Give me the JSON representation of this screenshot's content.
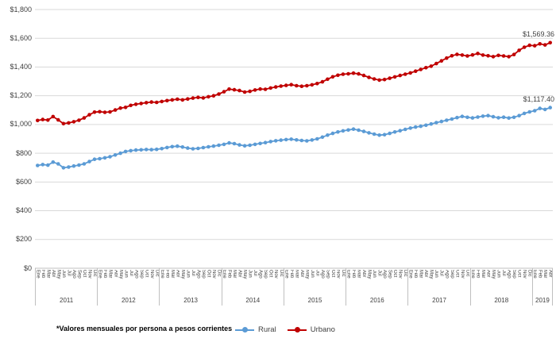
{
  "chart_data": {
    "type": "line",
    "title": "",
    "footnote": "*Valores mensuales por persona a pesos corrientes",
    "grid": true,
    "legend_position": "bottom",
    "y_axis": {
      "min": 0,
      "max": 1800,
      "ticks": [
        {
          "value": 0,
          "label": "$0"
        },
        {
          "value": 200,
          "label": "$200"
        },
        {
          "value": 400,
          "label": "$400"
        },
        {
          "value": 600,
          "label": "$600"
        },
        {
          "value": 800,
          "label": "$800"
        },
        {
          "value": 1000,
          "label": "$1,000"
        },
        {
          "value": 1200,
          "label": "$1,200"
        },
        {
          "value": 1400,
          "label": "$1,400"
        },
        {
          "value": 1600,
          "label": "$1,600"
        },
        {
          "value": 1800,
          "label": "$1,800"
        }
      ]
    },
    "x_axis": {
      "month_names": [
        "Ene",
        "Feb",
        "Mar",
        "Abr",
        "May",
        "Jun",
        "Jul",
        "Ago",
        "Sep",
        "Oct",
        "Nov",
        "Dic"
      ],
      "years": [
        {
          "label": "2011",
          "months": 12
        },
        {
          "label": "2012",
          "months": 12
        },
        {
          "label": "2013",
          "months": 12
        },
        {
          "label": "2014",
          "months": 12
        },
        {
          "label": "2015",
          "months": 12
        },
        {
          "label": "2016",
          "months": 12
        },
        {
          "label": "2017",
          "months": 12
        },
        {
          "label": "2018",
          "months": 12
        },
        {
          "label": "2019",
          "months": 4
        }
      ]
    },
    "series": [
      {
        "name": "Rural",
        "color": "#5B9BD5",
        "end_label": "$1,117.40",
        "values": [
          715,
          721,
          717,
          738,
          726,
          699,
          704,
          711,
          718,
          726,
          742,
          758,
          762,
          768,
          776,
          788,
          800,
          812,
          818,
          822,
          824,
          826,
          825,
          827,
          832,
          840,
          846,
          849,
          843,
          836,
          831,
          834,
          839,
          845,
          850,
          856,
          862,
          872,
          867,
          858,
          852,
          856,
          862,
          868,
          874,
          881,
          887,
          891,
          895,
          898,
          893,
          889,
          886,
          892,
          900,
          912,
          926,
          938,
          948,
          956,
          962,
          968,
          961,
          952,
          942,
          933,
          926,
          929,
          938,
          948,
          957,
          966,
          975,
          982,
          988,
          995,
          1004,
          1013,
          1021,
          1030,
          1038,
          1048,
          1056,
          1050,
          1046,
          1052,
          1058,
          1062,
          1054,
          1047,
          1051,
          1045,
          1050,
          1062,
          1077,
          1088,
          1096,
          1112,
          1105,
          1117.4
        ]
      },
      {
        "name": "Urbano",
        "color": "#C00000",
        "end_label": "$1,569.36",
        "values": [
          1028,
          1035,
          1031,
          1055,
          1032,
          1006,
          1011,
          1019,
          1030,
          1046,
          1068,
          1086,
          1089,
          1085,
          1088,
          1101,
          1114,
          1119,
          1133,
          1141,
          1146,
          1152,
          1156,
          1154,
          1160,
          1166,
          1171,
          1176,
          1171,
          1178,
          1184,
          1189,
          1185,
          1193,
          1200,
          1212,
          1228,
          1246,
          1242,
          1236,
          1226,
          1231,
          1240,
          1247,
          1245,
          1254,
          1261,
          1267,
          1272,
          1277,
          1270,
          1266,
          1270,
          1276,
          1285,
          1297,
          1315,
          1332,
          1343,
          1350,
          1353,
          1357,
          1352,
          1341,
          1328,
          1317,
          1309,
          1313,
          1322,
          1331,
          1341,
          1350,
          1359,
          1371,
          1383,
          1395,
          1406,
          1424,
          1443,
          1462,
          1478,
          1488,
          1483,
          1477,
          1484,
          1494,
          1483,
          1478,
          1472,
          1481,
          1477,
          1472,
          1487,
          1516,
          1538,
          1551,
          1548,
          1561,
          1554,
          1569.36
        ]
      }
    ],
    "colors": {
      "gridline": "#D9D9D9",
      "axis_line": "#BFBFBF",
      "text": "#404040"
    }
  }
}
